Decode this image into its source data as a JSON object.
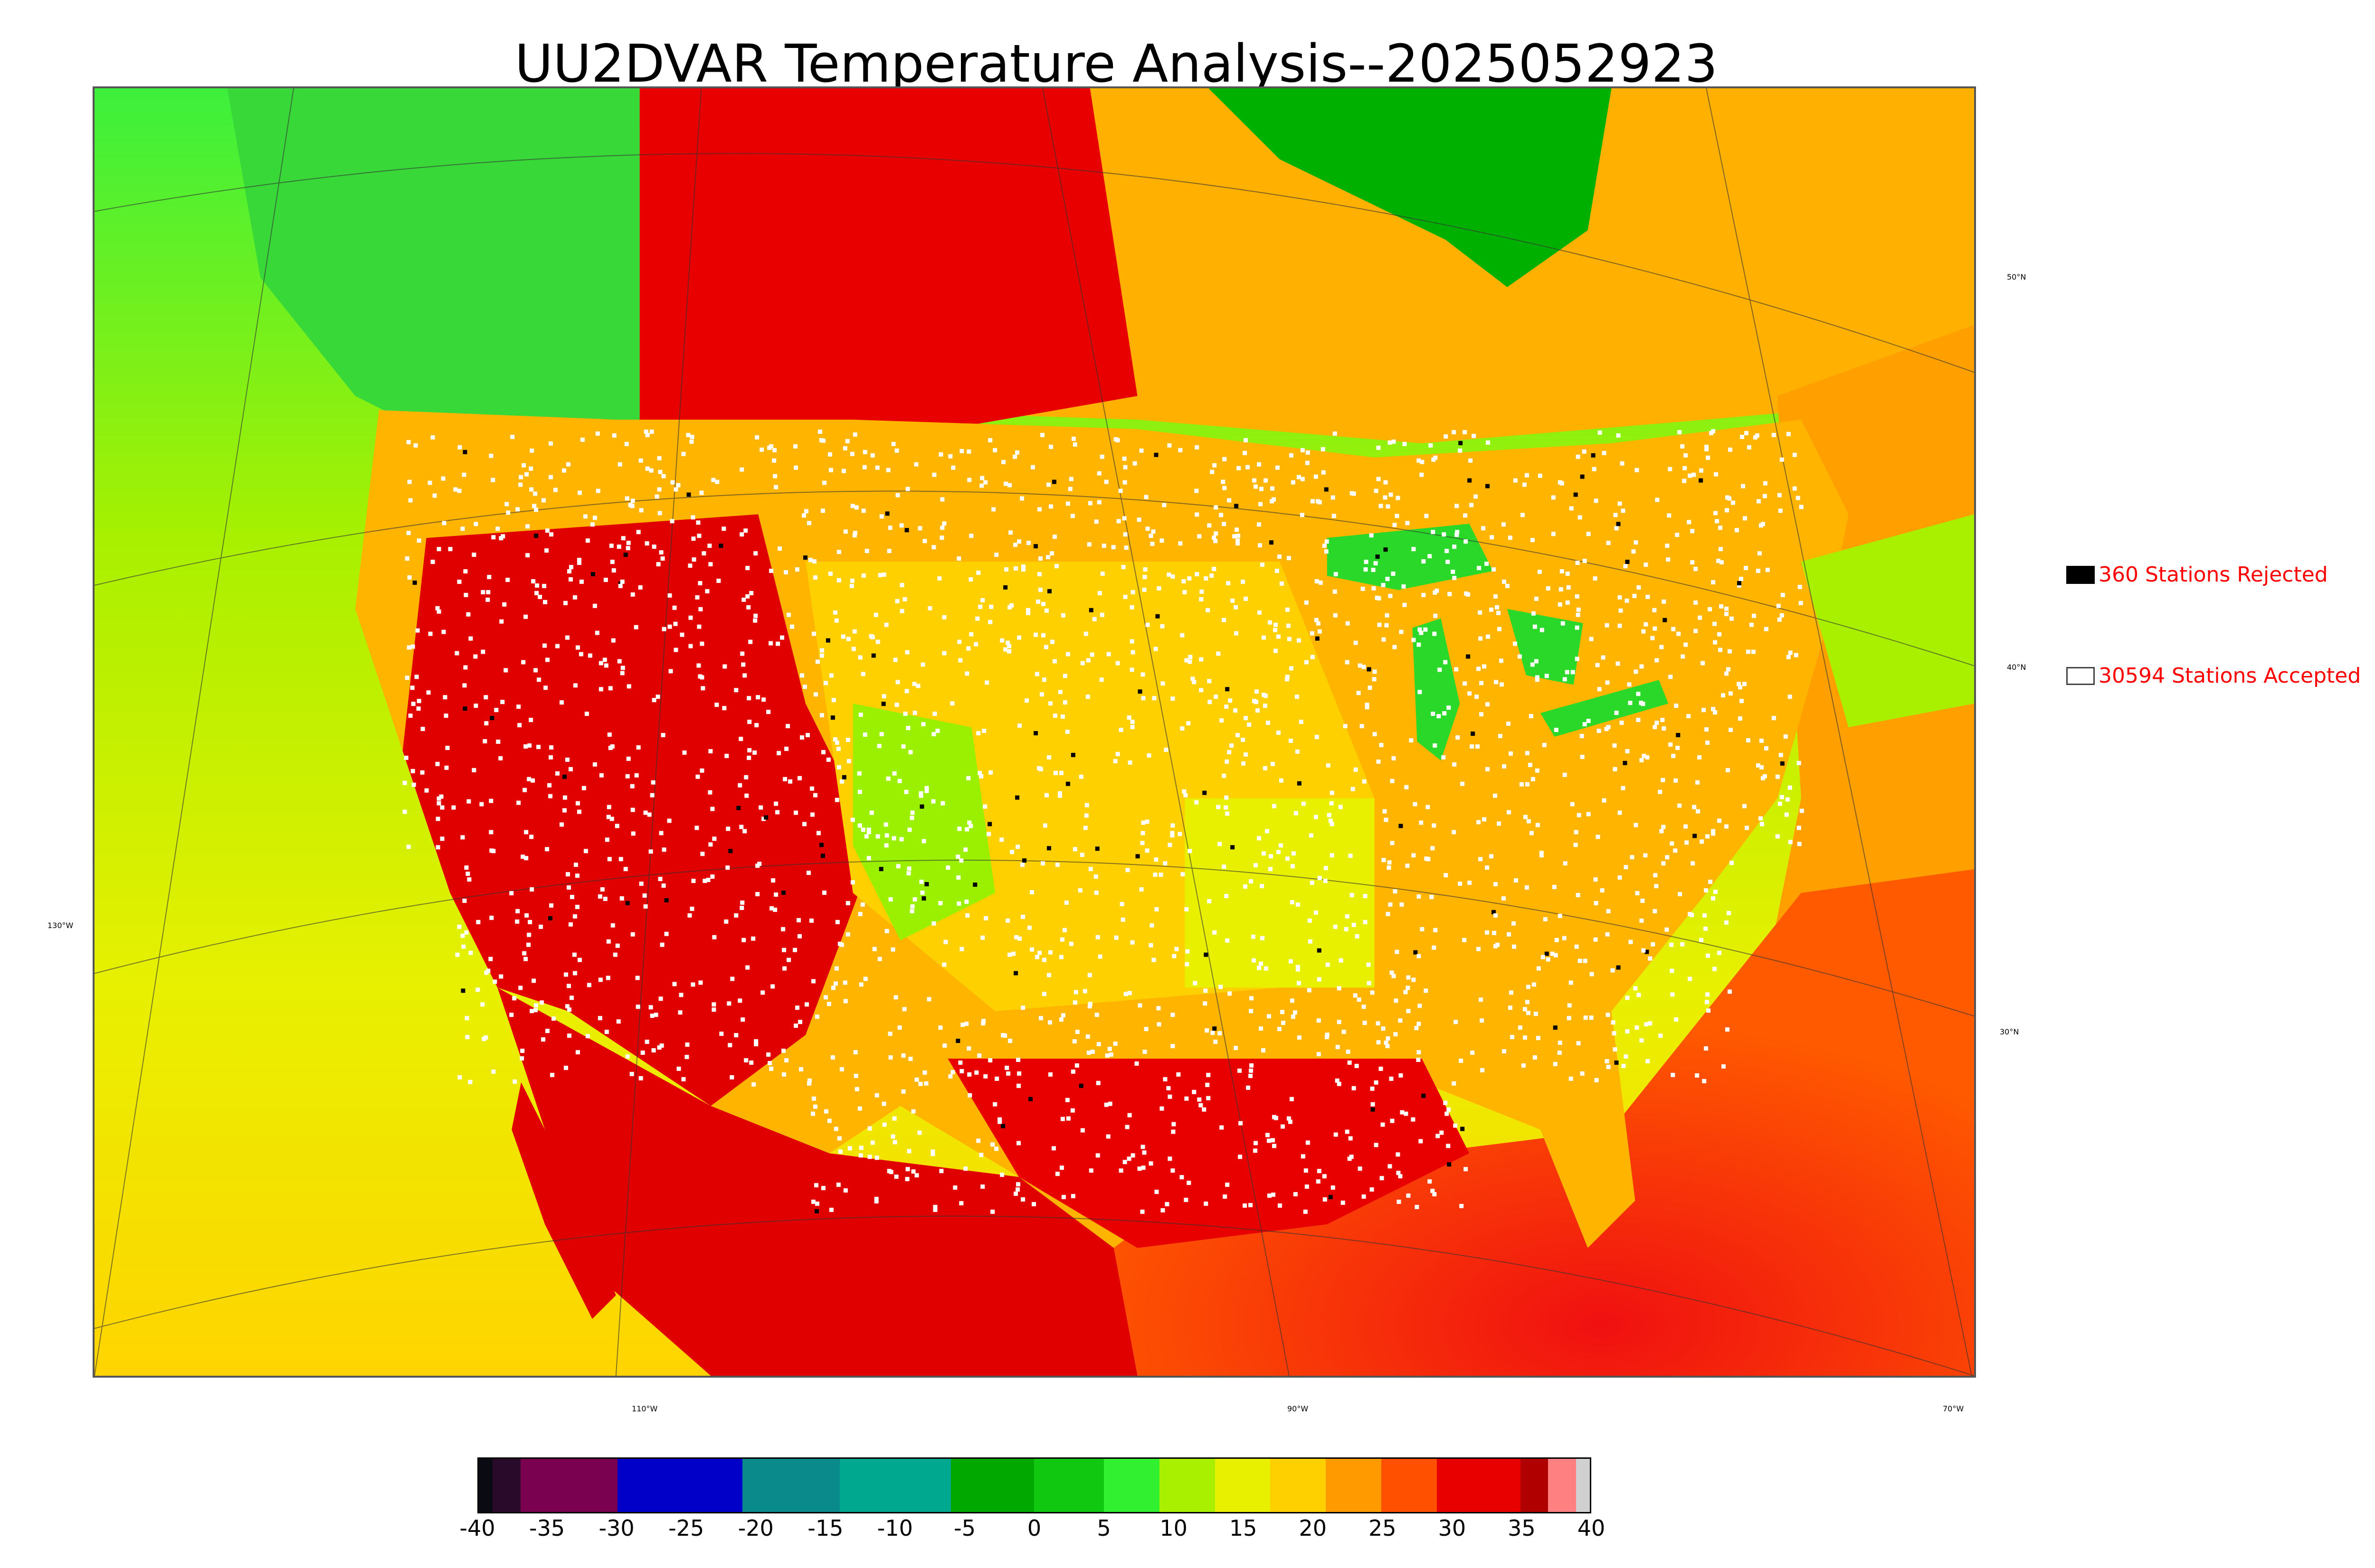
{
  "title": "UU2DVAR Temperature Analysis--2025052923",
  "map": {
    "lat_labels": [
      "50°N",
      "40°N",
      "30°N"
    ],
    "lon_labels": [
      "130°W",
      "110°W",
      "90°W",
      "70°W"
    ]
  },
  "legend": {
    "rejected": {
      "text": "360 Stations Rejected",
      "color": "#000000"
    },
    "accepted": {
      "text": "30594 Stations Accepted",
      "color": "#ffffff"
    }
  },
  "colorbar": {
    "ticks": [
      "-40",
      "-35",
      "-30",
      "-25",
      "-20",
      "-15",
      "-10",
      "-5",
      "0",
      "5",
      "10",
      "15",
      "20",
      "25",
      "30",
      "35",
      "40"
    ],
    "min": -40,
    "max": 40,
    "stops": [
      {
        "from": -40,
        "to": -39,
        "color": "#0a0a12"
      },
      {
        "from": -39,
        "to": -37,
        "color": "#2a0a2a"
      },
      {
        "from": -37,
        "to": -30,
        "color": "#7a0050"
      },
      {
        "from": -30,
        "to": -21,
        "color": "#0000c8"
      },
      {
        "from": -21,
        "to": -14,
        "color": "#0a8a8a"
      },
      {
        "from": -14,
        "to": -6,
        "color": "#00a890"
      },
      {
        "from": -6,
        "to": 0,
        "color": "#00a800"
      },
      {
        "from": 0,
        "to": 5,
        "color": "#10c810"
      },
      {
        "from": 5,
        "to": 9,
        "color": "#30f030"
      },
      {
        "from": 9,
        "to": 13,
        "color": "#a8f000"
      },
      {
        "from": 13,
        "to": 17,
        "color": "#e8f000"
      },
      {
        "from": 17,
        "to": 21,
        "color": "#ffd000"
      },
      {
        "from": 21,
        "to": 25,
        "color": "#ff9a00"
      },
      {
        "from": 25,
        "to": 29,
        "color": "#ff5000"
      },
      {
        "from": 29,
        "to": 35,
        "color": "#e80000"
      },
      {
        "from": 35,
        "to": 37,
        "color": "#b00000"
      },
      {
        "from": 37,
        "to": 39,
        "color": "#ff8080"
      },
      {
        "from": 39,
        "to": 40,
        "color": "#d0d0d0"
      }
    ]
  }
}
